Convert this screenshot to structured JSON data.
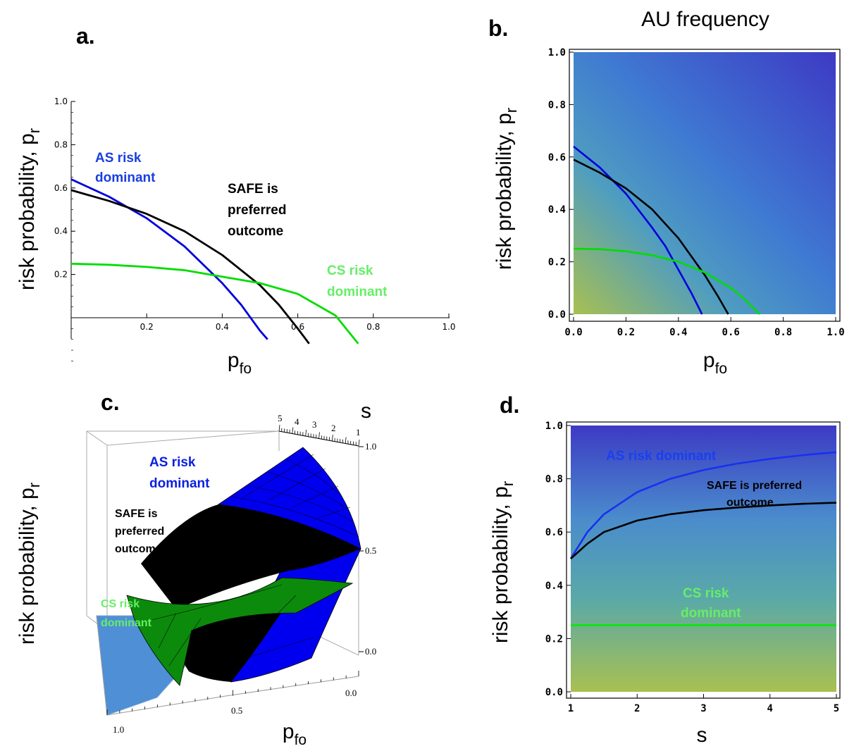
{
  "chart_data": [
    {
      "panel": "a.",
      "type": "line",
      "xlabel": "p",
      "xlabel_sub": "fo",
      "ylabel": "risk probability,  p",
      "ylabel_sub": "r",
      "xlim": [
        0,
        1.0
      ],
      "ylim": [
        -0.2,
        1.0
      ],
      "x_ticks": [
        "0.2",
        "0.4",
        "0.6",
        "0.8",
        "1.0"
      ],
      "y_ticks": [
        "0.2",
        "0.4",
        "0.6",
        "0.8",
        "1.0"
      ],
      "series": [
        {
          "color": "#0000dd",
          "x": [
            0,
            0.1,
            0.2,
            0.3,
            0.4,
            0.45,
            0.5,
            0.52
          ],
          "y": [
            0.64,
            0.56,
            0.46,
            0.33,
            0.16,
            0.06,
            -0.06,
            -0.1
          ]
        },
        {
          "color": "#000000",
          "x": [
            0,
            0.1,
            0.2,
            0.3,
            0.4,
            0.5,
            0.55,
            0.6,
            0.63
          ],
          "y": [
            0.59,
            0.54,
            0.48,
            0.4,
            0.29,
            0.15,
            0.06,
            -0.05,
            -0.12
          ]
        },
        {
          "color": "#00dd00",
          "x": [
            0,
            0.1,
            0.2,
            0.3,
            0.4,
            0.5,
            0.6,
            0.7,
            0.76
          ],
          "y": [
            0.25,
            0.245,
            0.235,
            0.22,
            0.19,
            0.16,
            0.11,
            0.01,
            -0.12
          ]
        }
      ],
      "annotations": [
        {
          "text": [
            "AS risk",
            "dominant"
          ],
          "color": "#1a3ee0"
        },
        {
          "text": [
            "SAFE is",
            "preferred",
            "outcome"
          ],
          "color": "#000000"
        },
        {
          "text": [
            "CS risk",
            "dominant"
          ],
          "color": "#66ee66"
        }
      ]
    },
    {
      "panel": "b.",
      "type": "heatmap",
      "title": "AU frequency",
      "xlabel": "p",
      "xlabel_sub": "fo",
      "ylabel": "risk probability,  p",
      "ylabel_sub": "r",
      "xlim": [
        0,
        1.0
      ],
      "ylim": [
        0,
        1.0
      ],
      "x_ticks": [
        "0.0",
        "0.2",
        "0.4",
        "0.6",
        "0.8",
        "1.0"
      ],
      "y_ticks": [
        "0.0",
        "0.2",
        "0.4",
        "0.6",
        "0.8",
        "1.0"
      ],
      "colors": {
        "low": "#a8c050",
        "mid": "#3f8fd0",
        "high": "#3f3dc4"
      },
      "series": [
        {
          "color": "#0000dd",
          "x": [
            0,
            0.1,
            0.2,
            0.3,
            0.35,
            0.4,
            0.45,
            0.49
          ],
          "y": [
            0.64,
            0.56,
            0.46,
            0.33,
            0.26,
            0.17,
            0.08,
            0.0
          ]
        },
        {
          "color": "#000000",
          "x": [
            0,
            0.1,
            0.2,
            0.3,
            0.4,
            0.5,
            0.55,
            0.59
          ],
          "y": [
            0.59,
            0.54,
            0.48,
            0.4,
            0.29,
            0.15,
            0.07,
            0.0
          ]
        },
        {
          "color": "#00dd00",
          "x": [
            0,
            0.1,
            0.2,
            0.3,
            0.4,
            0.5,
            0.6,
            0.65,
            0.71
          ],
          "y": [
            0.25,
            0.248,
            0.24,
            0.225,
            0.2,
            0.16,
            0.1,
            0.06,
            0.0
          ]
        }
      ]
    },
    {
      "panel": "c.",
      "type": "surface",
      "xlabel": "p",
      "xlabel_sub": "fo",
      "ylabel": "risk probability,  p",
      "ylabel_sub": "r",
      "zlabel": "s",
      "x_ticks": [
        "1.0",
        "0.5",
        "0.0"
      ],
      "y_ticks": [
        "0.0",
        "0.5",
        "1.0"
      ],
      "s_ticks": [
        "5",
        "4",
        "3",
        "2",
        "1"
      ],
      "annotations": [
        {
          "text": [
            "AS risk",
            "dominant"
          ],
          "color": "#0a1fe0"
        },
        {
          "text": [
            "SAFE is",
            "preferred",
            "outcome"
          ],
          "color": "#000000"
        },
        {
          "text": [
            "CS risk",
            "dominant"
          ],
          "color": "#66ee66"
        }
      ]
    },
    {
      "panel": "d.",
      "type": "heatmap",
      "xlabel": "s",
      "ylabel": "risk probability,  p",
      "ylabel_sub": "r",
      "xlim": [
        1,
        5
      ],
      "ylim": [
        0,
        1.0
      ],
      "x_ticks": [
        "1",
        "2",
        "3",
        "4",
        "5"
      ],
      "y_ticks": [
        "0.0",
        "0.2",
        "0.4",
        "0.6",
        "0.8",
        "1.0"
      ],
      "series": [
        {
          "color": "#1a30ee",
          "x": [
            1,
            1.25,
            1.5,
            2,
            2.5,
            3,
            3.5,
            4,
            4.5,
            5
          ],
          "y": [
            0.5,
            0.6,
            0.667,
            0.75,
            0.8,
            0.833,
            0.857,
            0.875,
            0.889,
            0.9
          ]
        },
        {
          "color": "#000000",
          "x": [
            1,
            1.25,
            1.5,
            2,
            2.5,
            3,
            3.5,
            4,
            4.5,
            5
          ],
          "y": [
            0.5,
            0.556,
            0.6,
            0.643,
            0.667,
            0.682,
            0.692,
            0.7,
            0.706,
            0.71
          ]
        },
        {
          "color": "#00ee00",
          "x": [
            1,
            5
          ],
          "y": [
            0.25,
            0.25
          ]
        }
      ],
      "annotations": [
        {
          "text": [
            "AS risk dominant"
          ],
          "color": "#1a40ee"
        },
        {
          "text": [
            "SAFE is preferred",
            "outcome"
          ],
          "color": "#000000"
        },
        {
          "text": [
            "CS risk",
            "dominant"
          ],
          "color": "#66ee66"
        }
      ]
    }
  ]
}
